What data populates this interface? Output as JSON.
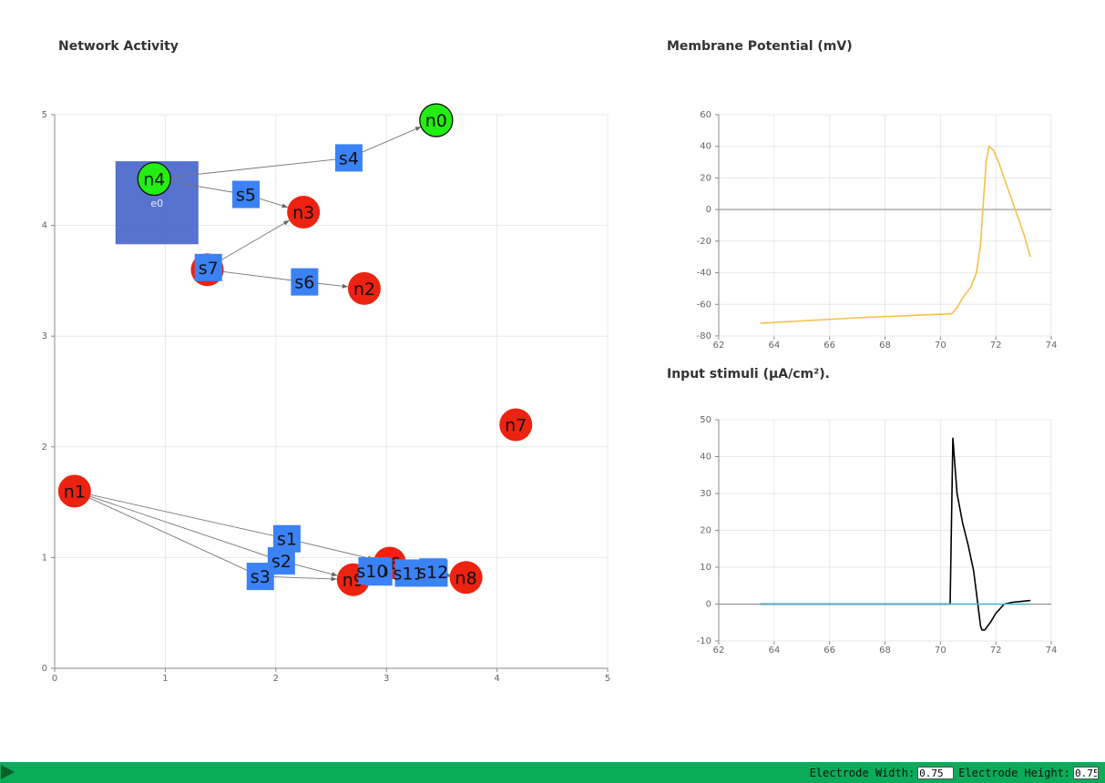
{
  "titles": {
    "network": "Network Activity",
    "membrane": "Membrane Potential (mV)",
    "stimuli": "Input stimuli (μA/cm²)."
  },
  "controls": {
    "width_label": "Electrode Width:",
    "width_value": "0.75",
    "height_label": "Electrode Height:",
    "height_value": "0.75"
  },
  "colors": {
    "neuron_active": "#22ee11",
    "neuron_inactive": "#ee2211",
    "synapse": "#3b82f6",
    "electrode": "#3a5bc7",
    "membrane_line": "#f5c04a",
    "stim_line": "#000000",
    "stim_baseline": "#4ab0d0",
    "bar": "#0aab59"
  },
  "chart_data": [
    {
      "type": "scatter",
      "title": "Network Activity",
      "xlim": [
        0,
        5
      ],
      "ylim": [
        0,
        5
      ],
      "xticks": [
        0,
        1,
        2,
        3,
        4,
        5
      ],
      "yticks": [
        0,
        1,
        2,
        3,
        4,
        5
      ],
      "grid": true,
      "neurons": [
        {
          "id": "n0",
          "x": 3.45,
          "y": 4.95,
          "active": true
        },
        {
          "id": "n1",
          "x": 0.18,
          "y": 1.6,
          "active": false
        },
        {
          "id": "n2",
          "x": 2.8,
          "y": 3.43,
          "active": false
        },
        {
          "id": "n3",
          "x": 2.25,
          "y": 4.12,
          "active": false
        },
        {
          "id": "n4",
          "x": 0.9,
          "y": 4.42,
          "active": true
        },
        {
          "id": "n5",
          "x": 1.38,
          "y": 3.6,
          "active": false
        },
        {
          "id": "n6",
          "x": 3.03,
          "y": 0.95,
          "active": false
        },
        {
          "id": "n7",
          "x": 4.17,
          "y": 2.2,
          "active": false
        },
        {
          "id": "n8",
          "x": 3.72,
          "y": 0.82,
          "active": false
        },
        {
          "id": "n9",
          "x": 2.7,
          "y": 0.8,
          "active": false
        }
      ],
      "synapses": [
        {
          "id": "s0",
          "x": 2.91,
          "y": 0.88,
          "from": "n9",
          "to": "n8"
        },
        {
          "id": "s1",
          "x": 2.1,
          "y": 1.17,
          "from": "n1",
          "to": "n6"
        },
        {
          "id": "s2",
          "x": 2.05,
          "y": 0.97,
          "from": "n1",
          "to": "n9"
        },
        {
          "id": "s3",
          "x": 1.86,
          "y": 0.83,
          "from": "n1",
          "to": "n9"
        },
        {
          "id": "s4",
          "x": 2.66,
          "y": 4.61,
          "from": "n4",
          "to": "n0"
        },
        {
          "id": "s5",
          "x": 1.73,
          "y": 4.28,
          "from": "n4",
          "to": "n3"
        },
        {
          "id": "s6",
          "x": 2.26,
          "y": 3.49,
          "from": "n5",
          "to": "n2"
        },
        {
          "id": "s7",
          "x": 1.39,
          "y": 3.62,
          "from": "n5",
          "to": "n3"
        },
        {
          "id": "s8",
          "x": 3.43,
          "y": 0.86,
          "from": "n6",
          "to": "n8"
        },
        {
          "id": "s9",
          "x": 2.93,
          "y": 0.87,
          "from": "n9",
          "to": "n8"
        },
        {
          "id": "s10",
          "x": 2.87,
          "y": 0.88,
          "from": "n9",
          "to": "n8"
        },
        {
          "id": "s11",
          "x": 3.2,
          "y": 0.86,
          "from": "n6",
          "to": "n8"
        },
        {
          "id": "s12",
          "x": 3.42,
          "y": 0.87,
          "from": "n6",
          "to": "n8"
        }
      ],
      "electrodes": [
        {
          "id": "e0",
          "x": 0.55,
          "y": 4.58,
          "w": 0.75,
          "h": 0.75
        }
      ]
    },
    {
      "type": "line",
      "title": "Membrane Potential (mV)",
      "xlim": [
        62,
        74
      ],
      "ylim": [
        -80,
        60
      ],
      "xticks": [
        62,
        64,
        66,
        68,
        70,
        72,
        74
      ],
      "yticks": [
        -80,
        -60,
        -40,
        -20,
        0,
        20,
        40,
        60
      ],
      "grid": true,
      "series": [
        {
          "x": [
            63.5,
            65,
            67,
            69,
            70.4,
            70.6,
            70.8,
            71.1,
            71.3,
            71.45,
            71.55,
            71.65,
            71.75,
            71.9,
            72.1,
            72.4,
            72.7,
            73.0,
            73.25
          ],
          "values": [
            -72,
            -70.5,
            -68.5,
            -67,
            -66,
            -62,
            -56,
            -49,
            -40,
            -22,
            5,
            30,
            40,
            38,
            30,
            15,
            0,
            -15,
            -30
          ]
        }
      ]
    },
    {
      "type": "line",
      "title": "Input stimuli (μA/cm²).",
      "xlim": [
        62,
        74
      ],
      "ylim": [
        -10,
        50
      ],
      "xticks": [
        62,
        64,
        66,
        68,
        70,
        72,
        74
      ],
      "yticks": [
        -10,
        0,
        10,
        20,
        30,
        40,
        50
      ],
      "grid": true,
      "series": [
        {
          "x": [
            63.5,
            70.35,
            70.45,
            70.6,
            70.8,
            71.0,
            71.2,
            71.35,
            71.45,
            71.5,
            71.6,
            71.7,
            71.8,
            72.0,
            72.3,
            72.6,
            73.0,
            73.25
          ],
          "values": [
            0,
            0,
            45,
            30,
            22,
            16,
            9,
            0,
            -6,
            -7,
            -7,
            -6,
            -5,
            -2.5,
            0,
            0.5,
            0.8,
            1.0
          ]
        },
        {
          "x": [
            63.5,
            73.25
          ],
          "values": [
            0,
            0
          ]
        }
      ]
    }
  ]
}
